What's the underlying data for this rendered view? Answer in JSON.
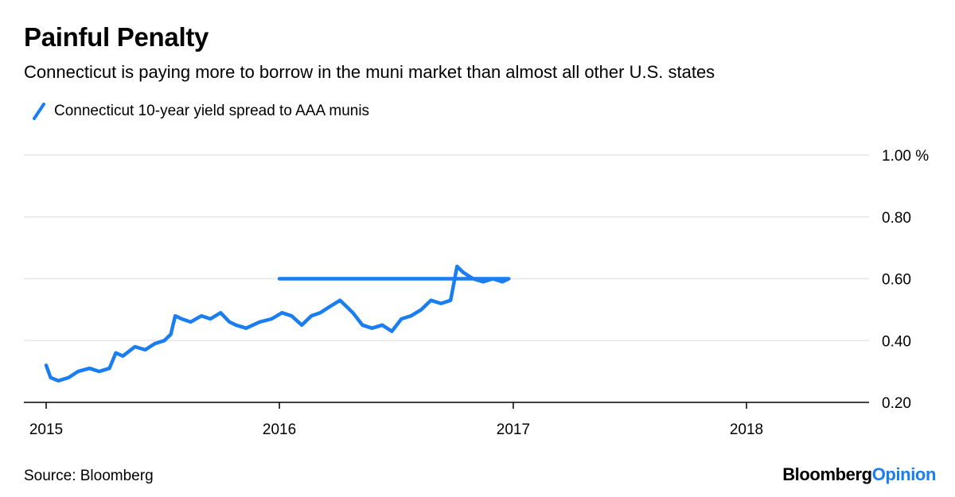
{
  "chart_data": {
    "type": "line",
    "title": "Painful Penalty",
    "subtitle": "Connecticut is paying more to borrow in the muni market than almost all other U.S. states",
    "legend": [
      "Connecticut 10-year yield spread to AAA munis"
    ],
    "ylim": [
      0.2,
      1.0
    ],
    "yticks": [
      {
        "value": 1.0,
        "label": "1.00 %"
      },
      {
        "value": 0.8,
        "label": "0.80"
      },
      {
        "value": 0.6,
        "label": "0.60"
      },
      {
        "value": 0.4,
        "label": "0.40"
      },
      {
        "value": 0.2,
        "label": "0.20"
      }
    ],
    "xlim": [
      "2015-01-01",
      "2018-06-15"
    ],
    "xticks": [
      {
        "value": "2015-01-01",
        "label": "2015"
      },
      {
        "value": "2016-01-01",
        "label": "2016"
      },
      {
        "value": "2017-01-01",
        "label": "2017"
      },
      {
        "value": "2018-01-01",
        "label": "2018"
      }
    ],
    "grid": true,
    "legend_position": "top-left",
    "series": [
      {
        "name": "Connecticut 10-year yield spread to AAA munis",
        "color": "#1a7ef0",
        "points": [
          [
            "2015-01-01",
            0.32
          ],
          [
            "2015-01-08",
            0.28
          ],
          [
            "2015-01-20",
            0.27
          ],
          [
            "2015-02-05",
            0.28
          ],
          [
            "2015-02-20",
            0.3
          ],
          [
            "2015-03-10",
            0.31
          ],
          [
            "2015-03-25",
            0.3
          ],
          [
            "2015-04-10",
            0.31
          ],
          [
            "2015-04-20",
            0.36
          ],
          [
            "2015-05-01",
            0.35
          ],
          [
            "2015-05-20",
            0.38
          ],
          [
            "2015-06-05",
            0.37
          ],
          [
            "2015-06-20",
            0.39
          ],
          [
            "2015-07-05",
            0.4
          ],
          [
            "2015-07-15",
            0.42
          ],
          [
            "2015-07-22",
            0.48
          ],
          [
            "2015-08-01",
            0.47
          ],
          [
            "2015-08-15",
            0.46
          ],
          [
            "2015-09-01",
            0.48
          ],
          [
            "2015-09-15",
            0.47
          ],
          [
            "2015-10-01",
            0.49
          ],
          [
            "2015-10-15",
            0.46
          ],
          [
            "2015-10-25",
            0.45
          ],
          [
            "2015-11-10",
            0.44
          ],
          [
            "2015-12-01",
            0.46
          ],
          [
            "2015-12-20",
            0.47
          ],
          [
            "2016-01-05",
            0.49
          ],
          [
            "2016-01-20",
            0.48
          ],
          [
            "2016-02-05",
            0.45
          ],
          [
            "2016-02-20",
            0.48
          ],
          [
            "2016-03-05",
            0.49
          ],
          [
            "2016-03-20",
            0.51
          ],
          [
            "2016-04-05",
            0.53
          ],
          [
            "2016-04-15",
            0.51
          ],
          [
            "2016-04-25",
            0.49
          ],
          [
            "2016-05-10",
            0.45
          ],
          [
            "2016-05-25",
            0.44
          ],
          [
            "2016-06-10",
            0.45
          ],
          [
            "2016-06-25",
            0.43
          ],
          [
            "2016-07-10",
            0.47
          ],
          [
            "2016-07-25",
            0.48
          ],
          [
            "2016-08-10",
            0.5
          ],
          [
            "2016-08-25",
            0.53
          ],
          [
            "2016-09-10",
            0.52
          ],
          [
            "2016-09-25",
            0.53
          ],
          [
            "2016-10-05",
            0.64
          ],
          [
            "2016-10-15",
            0.62
          ],
          [
            "2016-10-30",
            0.6
          ],
          [
            "2016-11-15",
            0.59
          ],
          [
            "2016-11-30",
            0.6
          ],
          [
            "2016-12-15",
            0.59
          ],
          [
            "2016-12-25",
            0.6
          ],
          [
            "2016-01-01",
            0.6
          ]
        ]
      }
    ]
  },
  "footer": {
    "source": "Source: Bloomberg",
    "brand_main": "Bloomberg",
    "brand_accent": "Opinion"
  }
}
